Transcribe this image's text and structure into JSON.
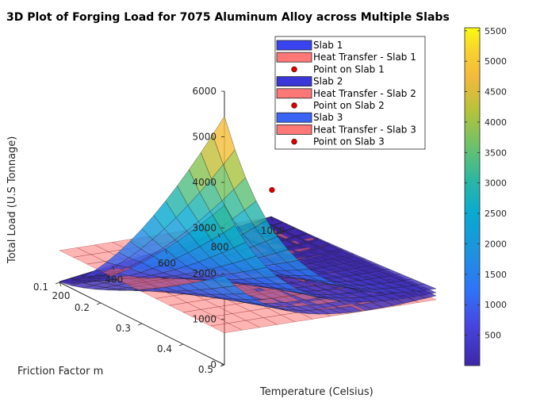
{
  "chart_data": {
    "type": "surface3d",
    "title": "3D Plot of Forging Load for 7075 Aluminum Alloy across Multiple Slabs",
    "xlabel": "Temperature (Celsius)",
    "ylabel": "Friction Factor m",
    "zlabel": "Total Load (U.S Tonnage)",
    "xlim": [
      200,
      1000
    ],
    "ylim": [
      0.1,
      0.5
    ],
    "zlim": [
      0,
      6000
    ],
    "x_ticks": [
      "200",
      "400",
      "600",
      "800",
      "1000"
    ],
    "y_ticks": [
      "0.1",
      "0.2",
      "0.3",
      "0.4",
      "0.5"
    ],
    "z_ticks": [
      "0",
      "1000",
      "2000",
      "3000",
      "4000",
      "5000",
      "6000"
    ],
    "colorbar": {
      "range": [
        0,
        5550
      ],
      "ticks": [
        "500",
        "1000",
        "1500",
        "2000",
        "2500",
        "3000",
        "3500",
        "4000",
        "4500",
        "5000",
        "5500"
      ]
    },
    "legend": [
      "Slab 1",
      "Heat Transfer - Slab 1",
      "Point on Slab 1",
      "Slab 2",
      "Heat Transfer - Slab 2",
      "Point on Slab 2",
      "Slab 3",
      "Heat Transfer - Slab 3",
      "Point on Slab 3"
    ],
    "series": [
      {
        "name": "Slab 1",
        "kind": "surface",
        "max_load": 5450,
        "min_load": 20
      },
      {
        "name": "Slab 2",
        "kind": "surface",
        "max_load": 3500,
        "min_load": 15
      },
      {
        "name": "Slab 3",
        "kind": "surface",
        "max_load": 1950,
        "min_load": 10
      },
      {
        "name": "Heat Transfer",
        "kind": "plane",
        "load_at_t_min": 700,
        "load_at_t_max": 0
      }
    ],
    "points": [
      {
        "name": "Point on Slab 1",
        "temperature": 660,
        "friction": 0.32,
        "load": 2200
      }
    ]
  }
}
